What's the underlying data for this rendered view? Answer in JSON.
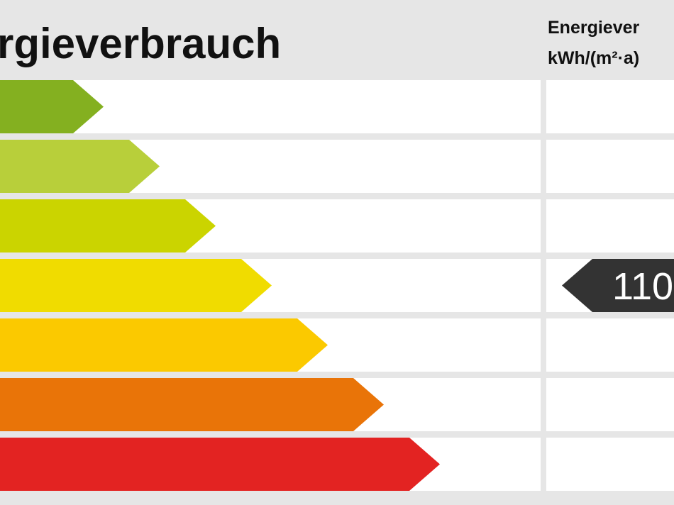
{
  "header": {
    "title": "rgieverbrauch",
    "column_title": "Energiever",
    "column_unit": "kWh/(m²·a)"
  },
  "marker": {
    "value": "110"
  }
}
